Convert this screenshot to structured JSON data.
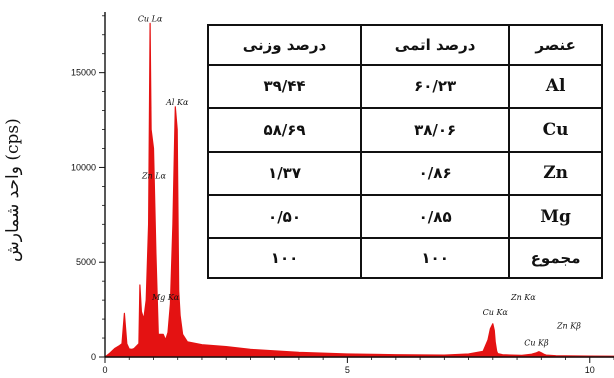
{
  "chart_data": {
    "type": "line",
    "y_axis_title": "واحد شمارش (cps)",
    "xlim": [
      0,
      10.5
    ],
    "ylim": [
      0,
      18200
    ],
    "x_ticks": [
      0,
      5,
      10
    ],
    "y_ticks": [
      0,
      5000,
      10000,
      15000
    ],
    "x_tick_labels": [
      "0",
      "5",
      "10"
    ],
    "y_tick_labels": [
      "0",
      "5000",
      "10000",
      "15000"
    ],
    "series": [
      {
        "color": "#e41212",
        "x": [
          0.0,
          0.1,
          0.2,
          0.3,
          0.35,
          0.4,
          0.45,
          0.5,
          0.55,
          0.6,
          0.7,
          0.72,
          0.75,
          0.8,
          0.85,
          0.9,
          0.93,
          0.95,
          1.0,
          1.05,
          1.1,
          1.2,
          1.25,
          1.3,
          1.35,
          1.4,
          1.45,
          1.49,
          1.52,
          1.55,
          1.6,
          1.7,
          2.0,
          2.5,
          3.0,
          4.0,
          5.0,
          6.0,
          7.0,
          7.5,
          7.8,
          7.9,
          7.95,
          8.0,
          8.03,
          8.05,
          8.08,
          8.1,
          8.2,
          8.4,
          8.6,
          8.8,
          8.9,
          8.95,
          9.0,
          9.05,
          9.1,
          9.3,
          9.5,
          10.0,
          10.5
        ],
        "y": [
          0,
          200,
          450,
          600,
          700,
          2300,
          700,
          420,
          400,
          450,
          700,
          3800,
          2400,
          2000,
          3000,
          7000,
          17600,
          12000,
          11000,
          5500,
          1200,
          1200,
          900,
          1300,
          2800,
          7000,
          13200,
          12000,
          3500,
          2200,
          1200,
          800,
          650,
          550,
          400,
          250,
          160,
          120,
          100,
          160,
          300,
          900,
          1500,
          1750,
          1400,
          800,
          300,
          180,
          120,
          100,
          90,
          150,
          220,
          280,
          220,
          150,
          100,
          70,
          60,
          50,
          40
        ]
      }
    ],
    "peak_labels": [
      {
        "text": "Cu Lα",
        "x": 0.93,
        "y": 17600
      },
      {
        "text": "Al Kα",
        "x": 1.49,
        "y": 13200
      },
      {
        "text": "Zn Lα",
        "x": 1.01,
        "y": 9300
      },
      {
        "text": "Mg Kα",
        "x": 1.25,
        "y": 2900
      },
      {
        "text": "Zn Kα",
        "x": 8.63,
        "y": 2900
      },
      {
        "text": "Cu Kα",
        "x": 8.05,
        "y": 2100
      },
      {
        "text": "Zn Kβ",
        "x": 9.57,
        "y": 1400
      },
      {
        "text": "Cu Kβ",
        "x": 8.9,
        "y": 500
      }
    ],
    "table": {
      "headers": [
        "درصد وزنی",
        "درصد اتمی",
        "عنصر"
      ],
      "rows": [
        [
          "۳۹/۴۴",
          "۶۰/۲۳",
          "Al"
        ],
        [
          "۵۸/۶۹",
          "۳۸/۰۶",
          "Cu"
        ],
        [
          "۱/۳۷",
          "۰/۸۶",
          "Zn"
        ],
        [
          "۰/۵۰",
          "۰/۸۵",
          "Mg"
        ],
        [
          "۱۰۰",
          "۱۰۰",
          "مجموع"
        ]
      ]
    }
  }
}
